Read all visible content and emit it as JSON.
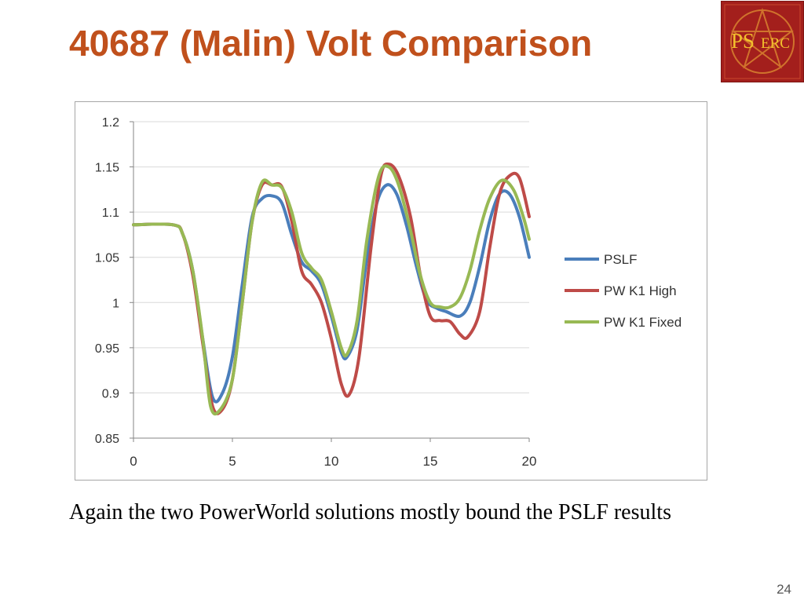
{
  "slide": {
    "title": "40687 (Malin) Volt Comparison",
    "caption": "Again the two PowerWorld solutions mostly bound the PSLF results",
    "page_number": "24"
  },
  "logo": {
    "text_ps": "PS",
    "text_erc": "ERC",
    "background": "#a31f1c",
    "text_color": "#f3c02d",
    "icon": "star-seal-icon"
  },
  "chart_data": {
    "type": "line",
    "title": "",
    "xlabel": "",
    "ylabel": "",
    "xlim": [
      0,
      20
    ],
    "ylim": [
      0.85,
      1.2
    ],
    "x_ticks": [
      "0",
      "5",
      "10",
      "15",
      "20"
    ],
    "y_ticks": [
      "0.85",
      "0.9",
      "0.95",
      "1",
      "1.05",
      "1.1",
      "1.15",
      "1.2"
    ],
    "grid": "horizontal",
    "legend_position": "right",
    "series": [
      {
        "name": "PSLF",
        "color": "#4a7ebb",
        "points": [
          [
            0,
            1.086
          ],
          [
            2,
            1.086
          ],
          [
            2.5,
            1.075
          ],
          [
            3,
            1.035
          ],
          [
            3.5,
            0.96
          ],
          [
            4,
            0.895
          ],
          [
            4.5,
            0.9
          ],
          [
            5,
            0.94
          ],
          [
            5.5,
            1.02
          ],
          [
            6,
            1.095
          ],
          [
            6.5,
            1.115
          ],
          [
            7,
            1.118
          ],
          [
            7.5,
            1.11
          ],
          [
            8,
            1.075
          ],
          [
            8.5,
            1.045
          ],
          [
            9,
            1.035
          ],
          [
            9.5,
            1.02
          ],
          [
            10,
            0.985
          ],
          [
            10.5,
            0.945
          ],
          [
            10.8,
            0.94
          ],
          [
            11.3,
            0.97
          ],
          [
            11.8,
            1.05
          ],
          [
            12.3,
            1.11
          ],
          [
            12.8,
            1.13
          ],
          [
            13.3,
            1.12
          ],
          [
            13.8,
            1.085
          ],
          [
            14.3,
            1.04
          ],
          [
            14.8,
            1.003
          ],
          [
            15.3,
            0.994
          ],
          [
            15.8,
            0.99
          ],
          [
            16.5,
            0.985
          ],
          [
            17,
            1.0
          ],
          [
            17.5,
            1.04
          ],
          [
            18,
            1.09
          ],
          [
            18.5,
            1.12
          ],
          [
            19,
            1.12
          ],
          [
            19.5,
            1.095
          ],
          [
            20,
            1.05
          ]
        ]
      },
      {
        "name": "PW K1 High",
        "color": "#be4b48",
        "points": [
          [
            0,
            1.086
          ],
          [
            2,
            1.086
          ],
          [
            2.5,
            1.075
          ],
          [
            3,
            1.03
          ],
          [
            3.5,
            0.955
          ],
          [
            4,
            0.885
          ],
          [
            4.5,
            0.882
          ],
          [
            5,
            0.915
          ],
          [
            5.5,
            1.0
          ],
          [
            6,
            1.09
          ],
          [
            6.5,
            1.13
          ],
          [
            7,
            1.13
          ],
          [
            7.5,
            1.128
          ],
          [
            8,
            1.09
          ],
          [
            8.5,
            1.035
          ],
          [
            9,
            1.02
          ],
          [
            9.5,
            1.0
          ],
          [
            10,
            0.96
          ],
          [
            10.5,
            0.91
          ],
          [
            10.9,
            0.898
          ],
          [
            11.4,
            0.94
          ],
          [
            12,
            1.06
          ],
          [
            12.5,
            1.14
          ],
          [
            12.9,
            1.153
          ],
          [
            13.4,
            1.14
          ],
          [
            14,
            1.095
          ],
          [
            14.5,
            1.03
          ],
          [
            15,
            0.985
          ],
          [
            15.5,
            0.98
          ],
          [
            16,
            0.979
          ],
          [
            16.5,
            0.965
          ],
          [
            16.9,
            0.962
          ],
          [
            17.5,
            0.99
          ],
          [
            18,
            1.06
          ],
          [
            18.5,
            1.12
          ],
          [
            19,
            1.14
          ],
          [
            19.5,
            1.138
          ],
          [
            20,
            1.095
          ]
        ]
      },
      {
        "name": "PW K1 Fixed",
        "color": "#98b954",
        "points": [
          [
            0,
            1.086
          ],
          [
            2,
            1.086
          ],
          [
            2.5,
            1.075
          ],
          [
            3,
            1.035
          ],
          [
            3.5,
            0.96
          ],
          [
            3.9,
            0.885
          ],
          [
            4.4,
            0.882
          ],
          [
            5,
            0.915
          ],
          [
            5.5,
            1.0
          ],
          [
            6,
            1.09
          ],
          [
            6.5,
            1.133
          ],
          [
            7,
            1.13
          ],
          [
            7.5,
            1.127
          ],
          [
            8,
            1.1
          ],
          [
            8.5,
            1.055
          ],
          [
            9,
            1.038
          ],
          [
            9.5,
            1.025
          ],
          [
            10,
            0.99
          ],
          [
            10.5,
            0.95
          ],
          [
            10.8,
            0.943
          ],
          [
            11.3,
            0.98
          ],
          [
            11.8,
            1.07
          ],
          [
            12.4,
            1.14
          ],
          [
            12.9,
            1.15
          ],
          [
            13.4,
            1.13
          ],
          [
            14,
            1.08
          ],
          [
            14.5,
            1.03
          ],
          [
            15,
            1.0
          ],
          [
            15.5,
            0.995
          ],
          [
            16,
            0.995
          ],
          [
            16.5,
            1.005
          ],
          [
            17,
            1.035
          ],
          [
            17.5,
            1.08
          ],
          [
            18,
            1.115
          ],
          [
            18.6,
            1.135
          ],
          [
            19.2,
            1.125
          ],
          [
            19.7,
            1.095
          ],
          [
            20,
            1.07
          ]
        ]
      }
    ]
  }
}
